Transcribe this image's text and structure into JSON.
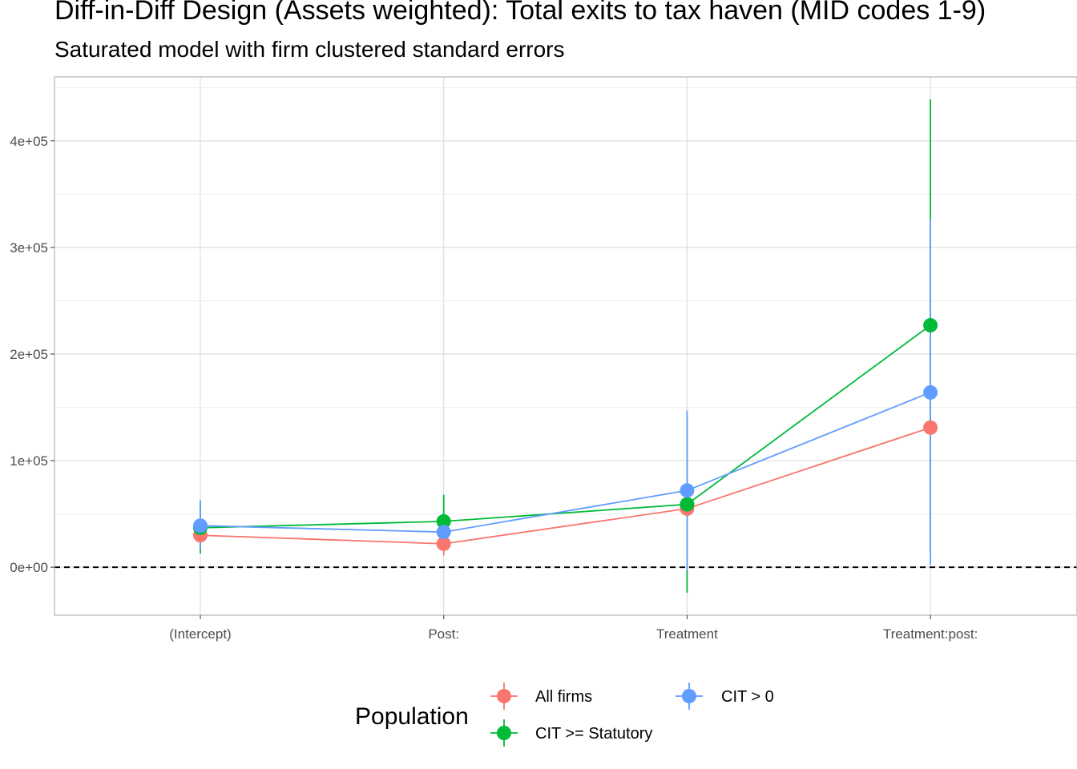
{
  "chart_data": {
    "type": "scatter",
    "title": "Diff-in-Diff Design (Assets weighted): Total exits to tax haven (MID codes 1-9)",
    "subtitle": "Saturated model with firm clustered standard errors",
    "xlabel": "",
    "ylabel": "",
    "categories": [
      "(Intercept)",
      "Post:",
      "Treatment",
      "Treatment:post:"
    ],
    "ylim": [
      -45000,
      460000
    ],
    "y_ticks": [
      0,
      100000,
      200000,
      300000,
      400000
    ],
    "y_tick_labels": [
      "0e+00",
      "1e+05",
      "2e+05",
      "3e+05",
      "4e+05"
    ],
    "reference_line": 0,
    "grid": true,
    "legend_title": "Population",
    "legend_position": "bottom",
    "series": [
      {
        "name": "All firms",
        "color": "#F8766D",
        "values": [
          30000,
          22000,
          55000,
          131000
        ],
        "lower": [
          13000,
          11000,
          47000,
          121000
        ],
        "upper": [
          47000,
          33000,
          63000,
          141000
        ]
      },
      {
        "name": "CIT >= Statutory",
        "color": "#00BA38",
        "values": [
          37000,
          43000,
          59000,
          227000
        ],
        "lower": [
          13000,
          18000,
          -24000,
          15000
        ],
        "upper": [
          61000,
          68000,
          142000,
          439000
        ]
      },
      {
        "name": "CIT > 0",
        "color": "#619CFF",
        "values": [
          39000,
          33000,
          72000,
          164000
        ],
        "lower": [
          16000,
          22000,
          -3000,
          2000
        ],
        "upper": [
          63000,
          44000,
          147000,
          326000
        ]
      }
    ]
  }
}
